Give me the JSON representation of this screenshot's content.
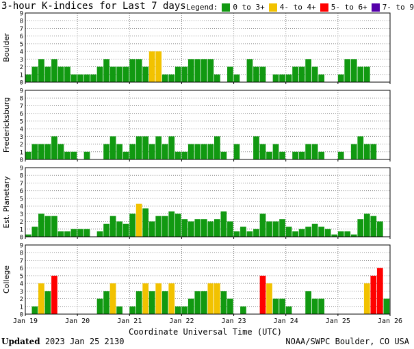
{
  "title": "3-hour K-indices for Last 7 days",
  "legend": {
    "label": "Legend:",
    "items": [
      {
        "label": "0 to 3+",
        "color": "#119911"
      },
      {
        "label": "4- to 4+",
        "color": "#f2c200"
      },
      {
        "label": "5- to 6+",
        "color": "#ff0000"
      },
      {
        "label": "7- to 9",
        "color": "#5500aa"
      }
    ]
  },
  "footer": {
    "updated_label": "Updated",
    "updated_value": "2023 Jan 25 2130",
    "source": "NOAA/SWPC Boulder, CO USA"
  },
  "chart_data": {
    "type": "bar",
    "xlabel": "Coordinate Universal Time (UTC)",
    "x_ticks": [
      "Jan 19",
      "Jan 20",
      "Jan 21",
      "Jan 22",
      "Jan 23",
      "Jan 24",
      "Jan 25",
      "Jan 26"
    ],
    "y_ticks": [
      0,
      1,
      2,
      3,
      4,
      5,
      6,
      7,
      8,
      9
    ],
    "ylim": [
      0,
      9
    ],
    "grid": true,
    "thresholds": {
      "yellow_from": 4,
      "red_from": 5,
      "purple_from": 7
    },
    "panels": [
      {
        "name": "Boulder",
        "values": [
          1,
          2,
          3,
          2,
          3,
          2,
          2,
          1,
          1,
          1,
          1,
          2,
          3,
          2,
          2,
          2,
          3,
          3,
          2,
          4,
          4,
          1,
          1,
          2,
          2,
          3,
          3,
          3,
          3,
          1,
          0,
          2,
          1,
          0,
          3,
          2,
          2,
          0,
          1,
          1,
          1,
          2,
          2,
          3,
          2,
          1,
          0,
          0,
          1,
          3,
          3,
          2,
          2,
          0
        ]
      },
      {
        "name": "Fredericksburg",
        "values": [
          1,
          2,
          2,
          2,
          3,
          2,
          1,
          1,
          0,
          1,
          0,
          0,
          2,
          3,
          2,
          1,
          2,
          3,
          3,
          2,
          3,
          2,
          3,
          1,
          1,
          2,
          2,
          2,
          2,
          3,
          1,
          0,
          2,
          0,
          0,
          3,
          2,
          1,
          2,
          1,
          0,
          1,
          1,
          2,
          2,
          1,
          0,
          0,
          1,
          0,
          2,
          3,
          2,
          2,
          0
        ]
      },
      {
        "name": "Est. Planetary",
        "values": [
          0.3,
          1.3,
          3,
          2.7,
          2.7,
          0.7,
          0.7,
          1,
          1,
          1,
          0,
          0.7,
          1.7,
          2.7,
          2,
          1.7,
          3,
          4.3,
          3.7,
          2,
          2.7,
          2.7,
          3.3,
          3,
          2.3,
          2,
          2.3,
          2.3,
          2,
          2.3,
          3.3,
          2,
          0.7,
          1.3,
          0.7,
          1,
          3,
          2,
          2,
          2.3,
          1.3,
          0.7,
          1,
          1.3,
          1.7,
          1.3,
          1,
          0.3,
          0.7,
          0.7,
          0.3,
          2.3,
          3,
          2.7,
          2
        ]
      },
      {
        "name": "College",
        "values": [
          0,
          1,
          4,
          3,
          5,
          0,
          0,
          0,
          0,
          0,
          0,
          2,
          3,
          4,
          1,
          0,
          1,
          3,
          4,
          3,
          4,
          3,
          4,
          1,
          1,
          2,
          3,
          3,
          4,
          4,
          3,
          2,
          0,
          1,
          0,
          0,
          5,
          4,
          2,
          2,
          1,
          0,
          0,
          3,
          2,
          2,
          0,
          0,
          0,
          0,
          0,
          0,
          4,
          5,
          6,
          2,
          0
        ]
      }
    ]
  }
}
